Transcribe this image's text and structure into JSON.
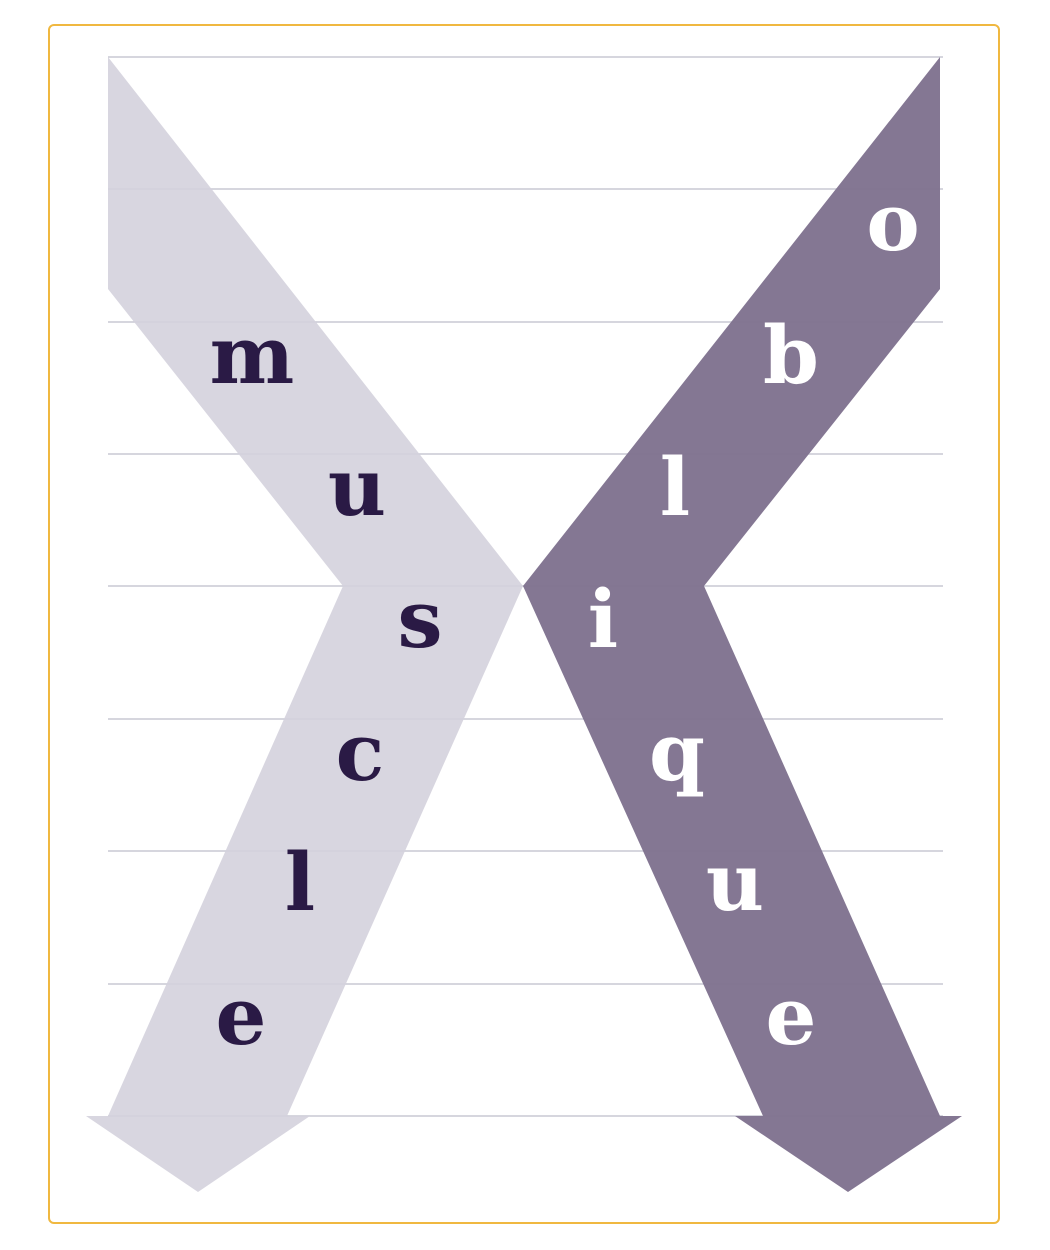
{
  "colors": {
    "frame_border": "#f0b840",
    "guide_line": "#c8c8d4",
    "left_arrow_fill": "#d4d1dd",
    "right_arrow_fill": "#807390",
    "left_letter_color": "#2a1a45",
    "right_letter_color": "#ffffff"
  },
  "diagram": {
    "left_word": {
      "word": "muscle",
      "letters": [
        "m",
        "u",
        "s",
        "c",
        "l",
        "e"
      ]
    },
    "right_word": {
      "word": "oblique",
      "letters": [
        "o",
        "b",
        "l",
        "i",
        "q",
        "u",
        "e"
      ]
    }
  }
}
